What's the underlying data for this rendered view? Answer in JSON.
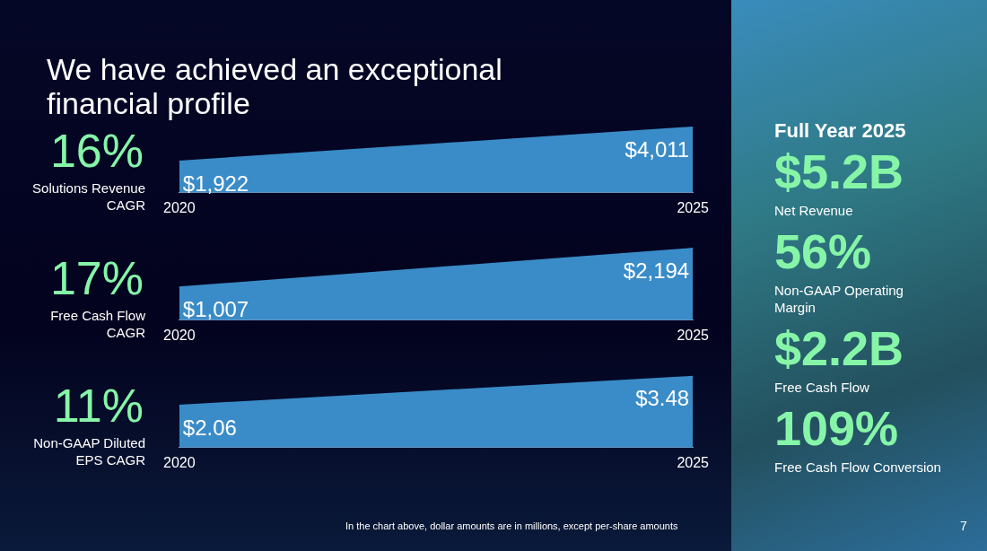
{
  "chart_data": [
    {
      "type": "other",
      "title": "We have achieved an exceptional financial profile",
      "annotations": [
        "In the chart above, dollar amounts are in millions, except per-share amounts",
        "7"
      ]
    },
    {
      "type": "area",
      "title": "16%",
      "subtitle": "Solutions Revenue CAGR",
      "categories": [
        "2020",
        "2025"
      ],
      "values": [
        1922,
        4011
      ],
      "value_labels": [
        "$1,922",
        "$4,011"
      ],
      "color": "#3a8cc8",
      "tick_labels": "x"
    },
    {
      "type": "area",
      "title": "17%",
      "subtitle": "Free Cash Flow CAGR",
      "categories": [
        "2020",
        "2025"
      ],
      "values": [
        1007,
        2194
      ],
      "value_labels": [
        "$1,007",
        "$2,194"
      ],
      "color": "#3a8cc8",
      "tick_labels": "x"
    },
    {
      "type": "area",
      "title": "11%",
      "subtitle": "Non-GAAP Diluted EPS CAGR",
      "categories": [
        "2020",
        "2025"
      ],
      "values": [
        2.06,
        3.48
      ],
      "value_labels": [
        "$2.06",
        "$3.48"
      ],
      "color": "#3a8cc8",
      "tick_labels": "x"
    },
    {
      "type": "other",
      "title": "Full Year 2025",
      "annotations": [
        "$5.2B",
        "Net Revenue",
        "56%",
        "Non-GAAP Operating Margin",
        "$2.2B",
        "Free Cash Flow",
        "109%",
        "Free Cash Flow Conversion"
      ]
    }
  ]
}
